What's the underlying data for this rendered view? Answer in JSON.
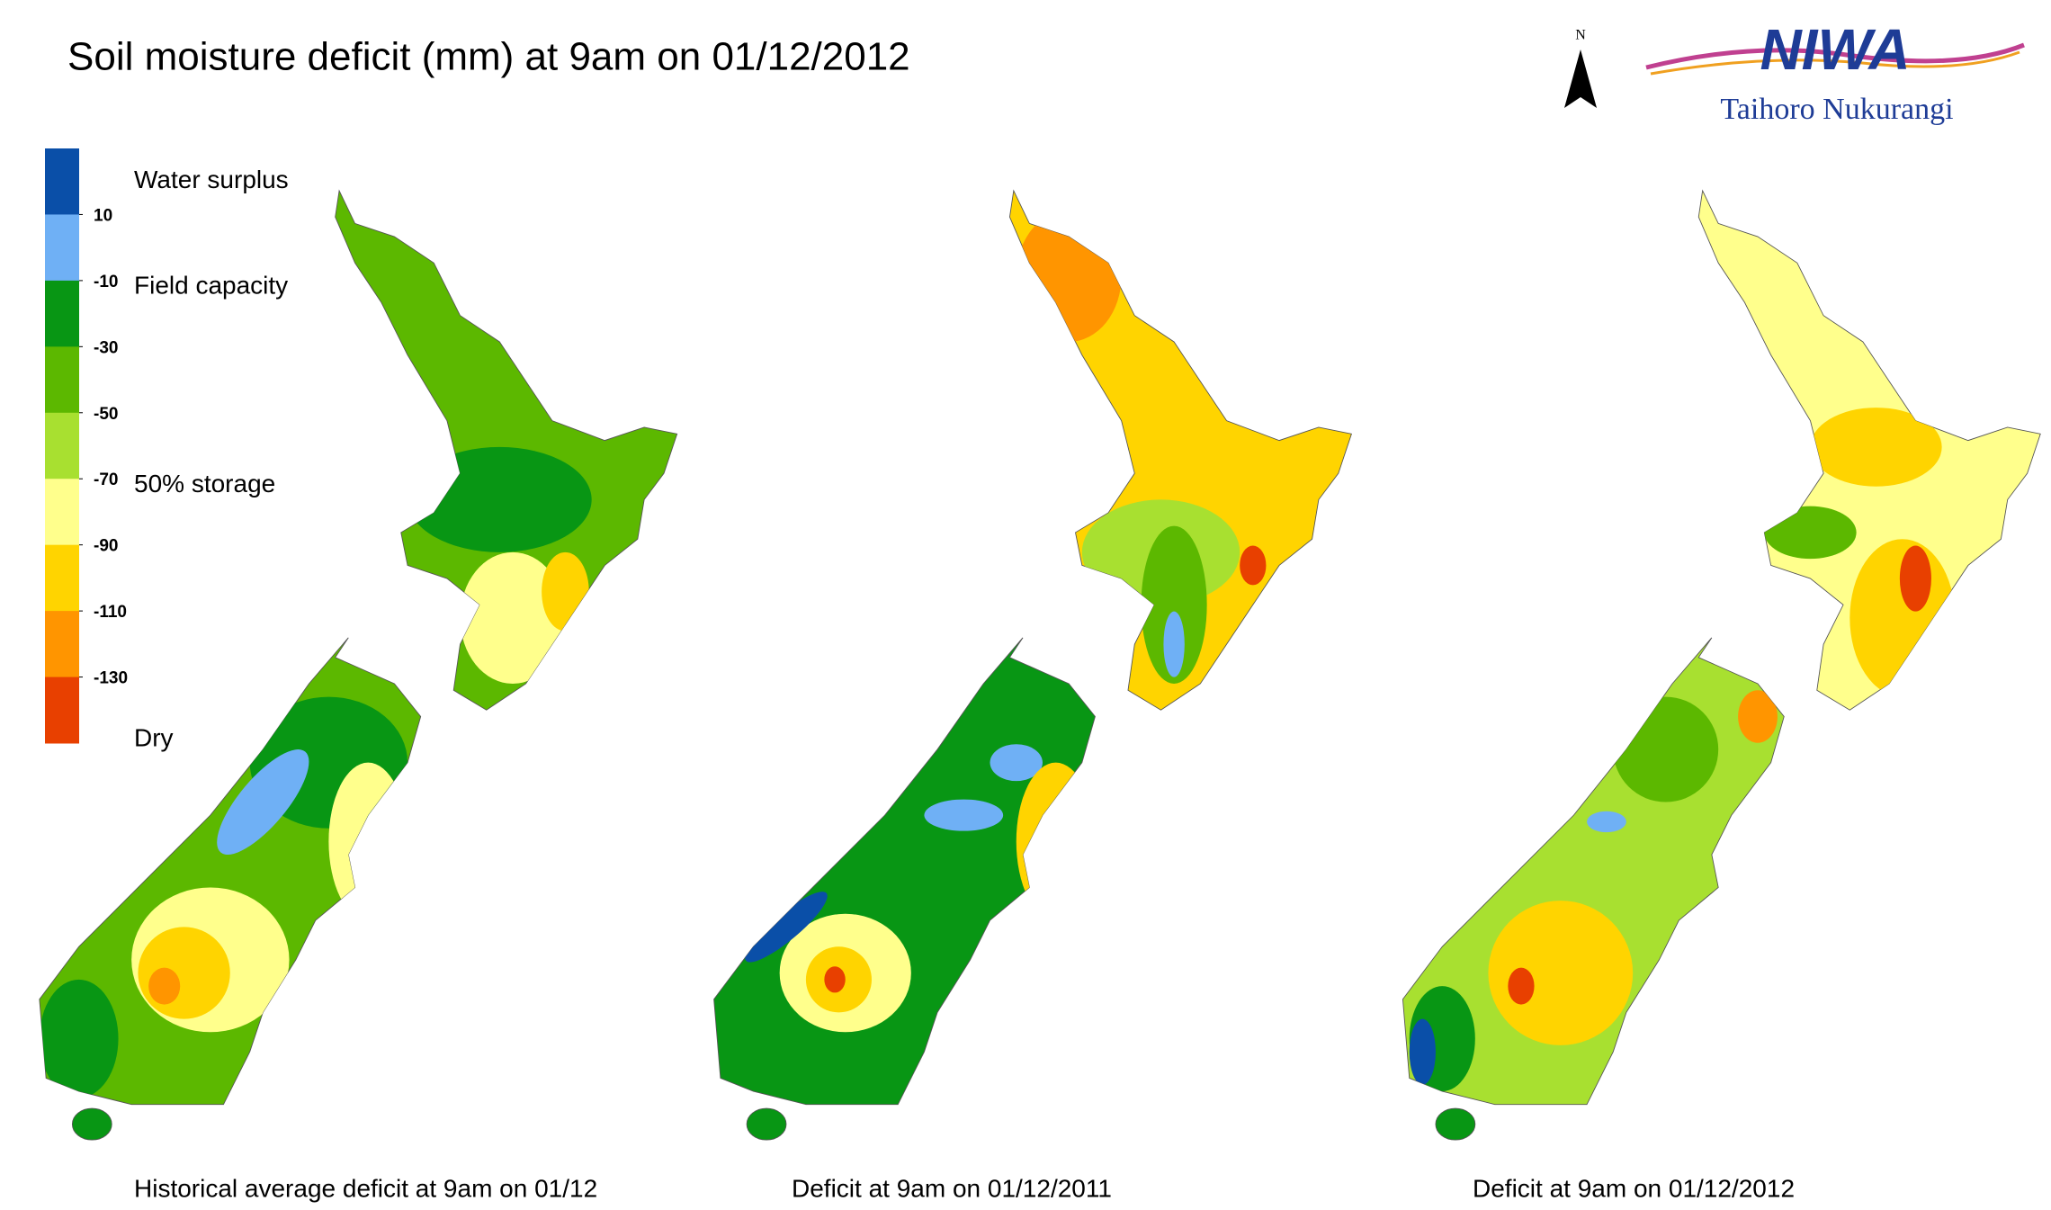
{
  "header": {
    "title": "Soil moisture deficit (mm) at  9am on 01/12/2012"
  },
  "logo": {
    "north": "N",
    "name": "NIWA",
    "subtitle": "Taihoro Nukurangi"
  },
  "legend": {
    "colors": [
      "#0a4fa8",
      "#6fb0f5",
      "#089614",
      "#5cb800",
      "#a8e030",
      "#ffff8c",
      "#ffd400",
      "#ff9500",
      "#e84000"
    ],
    "ticks": [
      10,
      -10,
      -30,
      -50,
      -70,
      -90,
      -110,
      -130
    ],
    "labels": {
      "surplus": "Water surplus",
      "field": "Field capacity",
      "storage": "50% storage",
      "dry": "Dry"
    }
  },
  "maps": [
    {
      "caption": "Historical average deficit at  9am on 01/12"
    },
    {
      "caption": "Deficit at  9am on 01/12/2011"
    },
    {
      "caption": "Deficit at  9am on 01/12/2012"
    }
  ]
}
